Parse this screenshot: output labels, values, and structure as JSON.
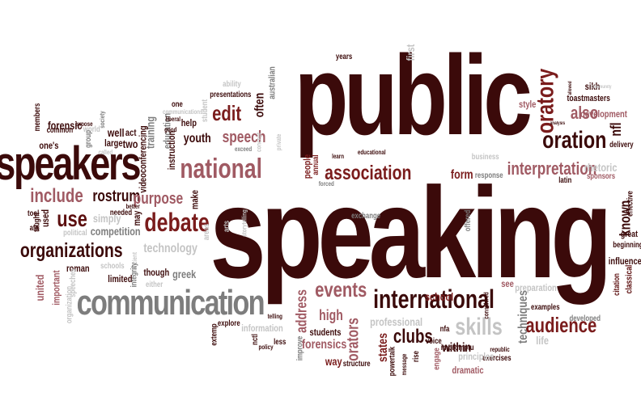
{
  "title": "",
  "palette": {
    "darkest": "#3b0a0a",
    "dark": "#5c0f0f",
    "red": "#7a1c1c",
    "rose": "#a05a63",
    "mauve": "#b08089",
    "grey": "#7d7d7d",
    "light": "#c4c4c4"
  },
  "words": [
    {
      "text": "public",
      "color": "darkest"
    },
    {
      "text": "speaking",
      "color": "darkest"
    },
    {
      "text": "speakers",
      "color": "darkest"
    },
    {
      "text": "communication",
      "color": "grey"
    },
    {
      "text": "international",
      "color": "darkest"
    },
    {
      "text": "association",
      "color": "red"
    },
    {
      "text": "national",
      "color": "rose"
    },
    {
      "text": "organizations",
      "color": "darkest"
    },
    {
      "text": "debate",
      "color": "red"
    },
    {
      "text": "oratory",
      "color": "red"
    },
    {
      "text": "oration",
      "color": "darkest"
    },
    {
      "text": "interpretation",
      "color": "rose"
    },
    {
      "text": "events",
      "color": "rose"
    },
    {
      "text": "skills",
      "color": "light"
    },
    {
      "text": "audience",
      "color": "red"
    },
    {
      "text": "include",
      "color": "rose"
    },
    {
      "text": "use",
      "color": "dark"
    },
    {
      "text": "rostrum",
      "color": "darkest"
    },
    {
      "text": "purpose",
      "color": "rose"
    },
    {
      "text": "edit",
      "color": "red"
    },
    {
      "text": "speech",
      "color": "rose"
    },
    {
      "text": "also",
      "color": "rose"
    },
    {
      "text": "nfl",
      "color": "darkest"
    },
    {
      "text": "orators",
      "color": "rose"
    },
    {
      "text": "clubs",
      "color": "darkest"
    },
    {
      "text": "high",
      "color": "rose"
    },
    {
      "text": "address",
      "color": "rose"
    },
    {
      "text": "known",
      "color": "darkest"
    },
    {
      "text": "often",
      "color": "darkest"
    },
    {
      "text": "youth",
      "color": "darkest"
    },
    {
      "text": "technology",
      "color": "light"
    },
    {
      "text": "greek",
      "color": "grey"
    },
    {
      "text": "states",
      "color": "red"
    },
    {
      "text": "school",
      "color": "red"
    },
    {
      "text": "within",
      "color": "darkest"
    },
    {
      "text": "form",
      "color": "red"
    },
    {
      "text": "professional",
      "color": "light"
    },
    {
      "text": "forensics",
      "color": "rose"
    },
    {
      "text": "students",
      "color": "darkest"
    },
    {
      "text": "techniques",
      "color": "grey"
    },
    {
      "text": "style",
      "color": "rose"
    },
    {
      "text": "development",
      "color": "rose"
    },
    {
      "text": "delivery",
      "color": "darkest"
    },
    {
      "text": "toastmasters",
      "color": "darkest"
    },
    {
      "text": "sikh",
      "color": "darkest"
    },
    {
      "text": "rhetoric",
      "color": "light"
    },
    {
      "text": "sponsors",
      "color": "rose"
    },
    {
      "text": "effective",
      "color": "darkest"
    },
    {
      "text": "great",
      "color": "darkest"
    },
    {
      "text": "beginning",
      "color": "darkest"
    },
    {
      "text": "influence",
      "color": "darkest"
    },
    {
      "text": "classical",
      "color": "dark"
    },
    {
      "text": "citation",
      "color": "dark"
    },
    {
      "text": "latin",
      "color": "darkest"
    },
    {
      "text": "first",
      "color": "light"
    },
    {
      "text": "years",
      "color": "darkest"
    },
    {
      "text": "australian",
      "color": "grey"
    },
    {
      "text": "presentations",
      "color": "darkest"
    },
    {
      "text": "ability",
      "color": "light"
    },
    {
      "text": "one",
      "color": "darkest"
    },
    {
      "text": "forensic",
      "color": "darkest"
    },
    {
      "text": "members",
      "color": "darkest"
    },
    {
      "text": "common",
      "color": "darkest"
    },
    {
      "text": "one's",
      "color": "darkest"
    },
    {
      "text": "expose",
      "color": "darkest"
    },
    {
      "text": "world",
      "color": "light"
    },
    {
      "text": "well",
      "color": "darkest"
    },
    {
      "text": "act",
      "color": "darkest"
    },
    {
      "text": "two",
      "color": "darkest"
    },
    {
      "text": "large",
      "color": "darkest"
    },
    {
      "text": "group",
      "color": "grey"
    },
    {
      "text": "called",
      "color": "light"
    },
    {
      "text": "society",
      "color": "grey"
    },
    {
      "text": "training",
      "color": "grey"
    },
    {
      "text": "education",
      "color": "grey"
    },
    {
      "text": "videoconferencing",
      "color": "darkest"
    },
    {
      "text": "instruction",
      "color": "darkest"
    },
    {
      "text": "help",
      "color": "darkest"
    },
    {
      "text": "liberal",
      "color": "darkest"
    },
    {
      "text": "good",
      "color": "darkest"
    },
    {
      "text": "student",
      "color": "light"
    },
    {
      "text": "communications",
      "color": "light"
    },
    {
      "text": "make",
      "color": "darkest"
    },
    {
      "text": "better",
      "color": "darkest"
    },
    {
      "text": "needed",
      "color": "darkest"
    },
    {
      "text": "simply",
      "color": "light"
    },
    {
      "text": "competition",
      "color": "grey"
    },
    {
      "text": "political",
      "color": "light"
    },
    {
      "text": "tool",
      "color": "darkest"
    },
    {
      "text": "taught",
      "color": "darkest"
    },
    {
      "text": "used",
      "color": "darkest"
    },
    {
      "text": "afa",
      "color": "darkest"
    },
    {
      "text": "may",
      "color": "darkest"
    },
    {
      "text": "roman",
      "color": "darkest"
    },
    {
      "text": "schools",
      "color": "light"
    },
    {
      "text": "ancient",
      "color": "light"
    },
    {
      "text": "limited",
      "color": "darkest"
    },
    {
      "text": "integrity",
      "color": "grey"
    },
    {
      "text": "though",
      "color": "darkest"
    },
    {
      "text": "either",
      "color": "light"
    },
    {
      "text": "speeches",
      "color": "light"
    },
    {
      "text": "united",
      "color": "rose"
    },
    {
      "text": "important",
      "color": "rose"
    },
    {
      "text": "organization",
      "color": "light"
    },
    {
      "text": "areas",
      "color": "light"
    },
    {
      "text": "arts",
      "color": "light"
    },
    {
      "text": "storytelling",
      "color": "light"
    },
    {
      "text": "private",
      "color": "light"
    },
    {
      "text": "exceed",
      "color": "grey"
    },
    {
      "text": "concept",
      "color": "light"
    },
    {
      "text": "people",
      "color": "red"
    },
    {
      "text": "annual",
      "color": "red"
    },
    {
      "text": "learn",
      "color": "darkest"
    },
    {
      "text": "forced",
      "color": "grey"
    },
    {
      "text": "educational",
      "color": "darkest"
    },
    {
      "text": "business",
      "color": "light"
    },
    {
      "text": "response",
      "color": "grey"
    },
    {
      "text": "offered",
      "color": "grey"
    },
    {
      "text": "exchange",
      "color": "grey"
    },
    {
      "text": "see",
      "color": "rose"
    },
    {
      "text": "preparation",
      "color": "light"
    },
    {
      "text": "examples",
      "color": "darkest"
    },
    {
      "text": "considered",
      "color": "darkest"
    },
    {
      "text": "life",
      "color": "light"
    },
    {
      "text": "developed",
      "color": "grey"
    },
    {
      "text": "republic",
      "color": "darkest"
    },
    {
      "text": "exercises",
      "color": "darkest"
    },
    {
      "text": "dramatic",
      "color": "rose"
    },
    {
      "text": "principles",
      "color": "light"
    },
    {
      "text": "impromptu",
      "color": "darkest"
    },
    {
      "text": "voice",
      "color": "darkest"
    },
    {
      "text": "nfa",
      "color": "darkest"
    },
    {
      "text": "rise",
      "color": "darkest"
    },
    {
      "text": "message",
      "color": "darkest"
    },
    {
      "text": "engage",
      "color": "rose"
    },
    {
      "text": "powertalk",
      "color": "darkest"
    },
    {
      "text": "structure",
      "color": "darkest"
    },
    {
      "text": "way",
      "color": "red"
    },
    {
      "text": "improve",
      "color": "grey"
    },
    {
      "text": "less",
      "color": "darkest"
    },
    {
      "text": "policy",
      "color": "darkest"
    },
    {
      "text": "nctl",
      "color": "darkest"
    },
    {
      "text": "telling",
      "color": "darkest"
    },
    {
      "text": "information",
      "color": "light"
    },
    {
      "text": "explore",
      "color": "darkest"
    },
    {
      "text": "extemp",
      "color": "darkest"
    },
    {
      "text": "community",
      "color": "light"
    },
    {
      "text": "allowed",
      "color": "darkest"
    },
    {
      "text": "analysis",
      "color": "darkest"
    }
  ]
}
